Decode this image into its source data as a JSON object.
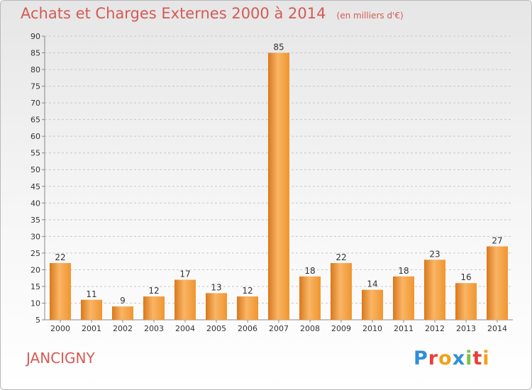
{
  "title": "Achats et Charges Externes 2000 à 2014",
  "subtitle": "(en milliers d'€)",
  "commune": "JANCIGNY",
  "logo": {
    "text": "Proxiti",
    "letters": [
      {
        "ch": "P",
        "color": "#2f8fd8"
      },
      {
        "ch": "r",
        "color": "#e8403a"
      },
      {
        "ch": "o",
        "color": "#f2a11c"
      },
      {
        "ch": "x",
        "color": "#2f8fd8"
      },
      {
        "ch": "i",
        "color": "#7cc242"
      },
      {
        "ch": "t",
        "color": "#e8403a"
      },
      {
        "ch": "i",
        "color": "#f2a11c"
      }
    ]
  },
  "colors": {
    "bar": "#f0952f",
    "bar_light": "#f9b565",
    "bar_dark": "#d9781c",
    "grid": "#c8c8c8",
    "title": "#d45a55"
  },
  "chart_data": {
    "type": "bar",
    "categories": [
      "2000",
      "2001",
      "2002",
      "2003",
      "2004",
      "2005",
      "2006",
      "2007",
      "2008",
      "2009",
      "2010",
      "2011",
      "2012",
      "2013",
      "2014"
    ],
    "values": [
      22,
      11,
      9,
      12,
      17,
      13,
      12,
      85,
      18,
      22,
      14,
      18,
      23,
      16,
      27
    ],
    "value_labels": [
      "22",
      "11",
      "9",
      "12",
      "17",
      "13",
      "12",
      "85",
      "18",
      "22",
      "14",
      "18",
      "23",
      "16",
      "27"
    ],
    "ylim": [
      5,
      90
    ],
    "yticks": [
      "5",
      "10",
      "15",
      "20",
      "25",
      "30",
      "35",
      "40",
      "45",
      "50",
      "55",
      "60",
      "65",
      "70",
      "75",
      "80",
      "85",
      "90"
    ],
    "grid": true,
    "xlabel": "",
    "ylabel": ""
  }
}
